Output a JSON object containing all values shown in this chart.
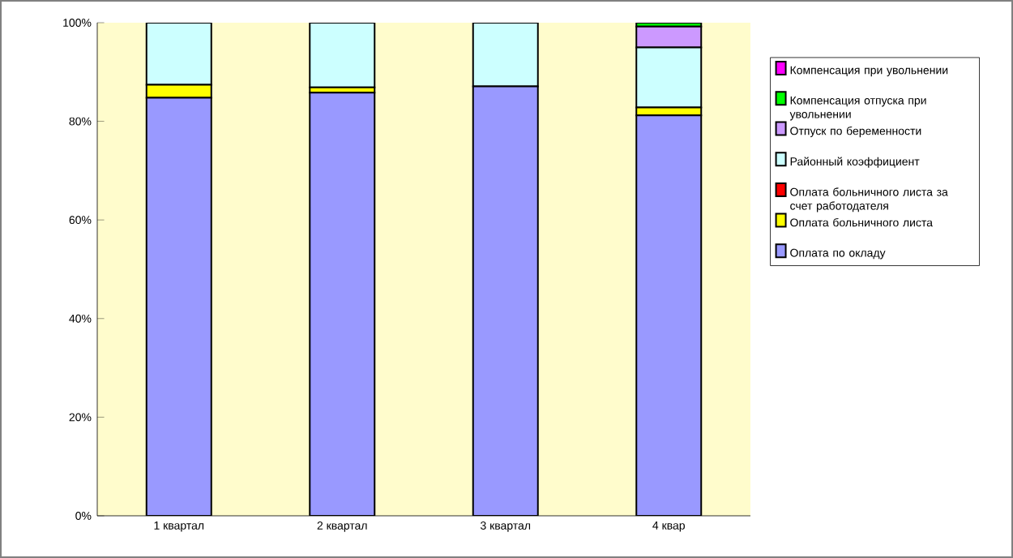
{
  "chart_data": {
    "type": "bar",
    "stacked": true,
    "categories": [
      "1 квартал",
      "2 квартал",
      "3 квартал",
      "4 квар"
    ],
    "ylim": [
      0,
      100
    ],
    "yticks": [
      {
        "value": 0,
        "label": "0%"
      },
      {
        "value": 20,
        "label": "20%"
      },
      {
        "value": 40,
        "label": "40%"
      },
      {
        "value": 60,
        "label": "60%"
      },
      {
        "value": 80,
        "label": "80%"
      },
      {
        "value": 100,
        "label": "100%"
      }
    ],
    "grid": false,
    "legend": "right",
    "series": [
      {
        "name": "Оплата по окладу",
        "color": "#9999ff",
        "values": [
          84.8,
          85.8,
          87.1,
          81.2
        ]
      },
      {
        "name": "Оплата больничного листа",
        "color": "#ffff00",
        "values": [
          2.6,
          1.1,
          0,
          1.6
        ]
      },
      {
        "name": "Оплата больничного листа за счет работодателя",
        "color": "#ff0000",
        "values": [
          0,
          0,
          0,
          0
        ]
      },
      {
        "name": "Районный коэффициент",
        "color": "#ccffff",
        "values": [
          12.6,
          13.1,
          12.9,
          12.2
        ]
      },
      {
        "name": "Отпуск по беременности",
        "color": "#cc99ff",
        "values": [
          0,
          0,
          0,
          4.2
        ]
      },
      {
        "name": "Компенсация отпуска при увольнении",
        "color": "#00ff00",
        "values": [
          0,
          0,
          0,
          0.8
        ]
      },
      {
        "name": "Компенсация при увольнении",
        "color": "#ff00ff",
        "values": [
          0,
          0,
          0,
          0
        ]
      }
    ]
  }
}
